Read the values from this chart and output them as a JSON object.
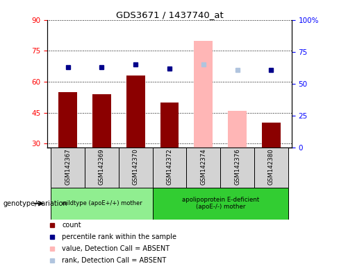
{
  "title": "GDS3671 / 1437740_at",
  "samples": [
    "GSM142367",
    "GSM142369",
    "GSM142370",
    "GSM142372",
    "GSM142374",
    "GSM142376",
    "GSM142380"
  ],
  "count_values": [
    55,
    54,
    63,
    50,
    80,
    46,
    40
  ],
  "rank_values": [
    63,
    63,
    65,
    62,
    65,
    61,
    61
  ],
  "absent_flags": [
    false,
    false,
    false,
    false,
    true,
    true,
    false
  ],
  "ylim_left": [
    28,
    90
  ],
  "ylim_right": [
    0,
    100
  ],
  "yticks_left": [
    30,
    45,
    60,
    75,
    90
  ],
  "yticks_right": [
    0,
    25,
    50,
    75,
    100
  ],
  "ytick_labels_right": [
    "0",
    "25",
    "50",
    "75",
    "100%"
  ],
  "bar_color_normal": "#8B0000",
  "bar_color_absent": "#FFB6B6",
  "rank_color_normal": "#00008B",
  "rank_color_absent": "#B0C4DE",
  "group1_label": "wildtype (apoE+/+) mother",
  "group2_label": "apolipoprotein E-deficient\n(apoE-/-) mother",
  "genotype_label": "genotype/variation",
  "group1_indices": [
    0,
    1,
    2
  ],
  "group2_indices": [
    3,
    4,
    5,
    6
  ],
  "group1_color": "#90EE90",
  "group2_color": "#32CD32",
  "legend_items": [
    {
      "label": "count",
      "color": "#8B0000"
    },
    {
      "label": "percentile rank within the sample",
      "color": "#00008B"
    },
    {
      "label": "value, Detection Call = ABSENT",
      "color": "#FFB6B6"
    },
    {
      "label": "rank, Detection Call = ABSENT",
      "color": "#B0C4DE"
    }
  ],
  "bar_width": 0.55
}
